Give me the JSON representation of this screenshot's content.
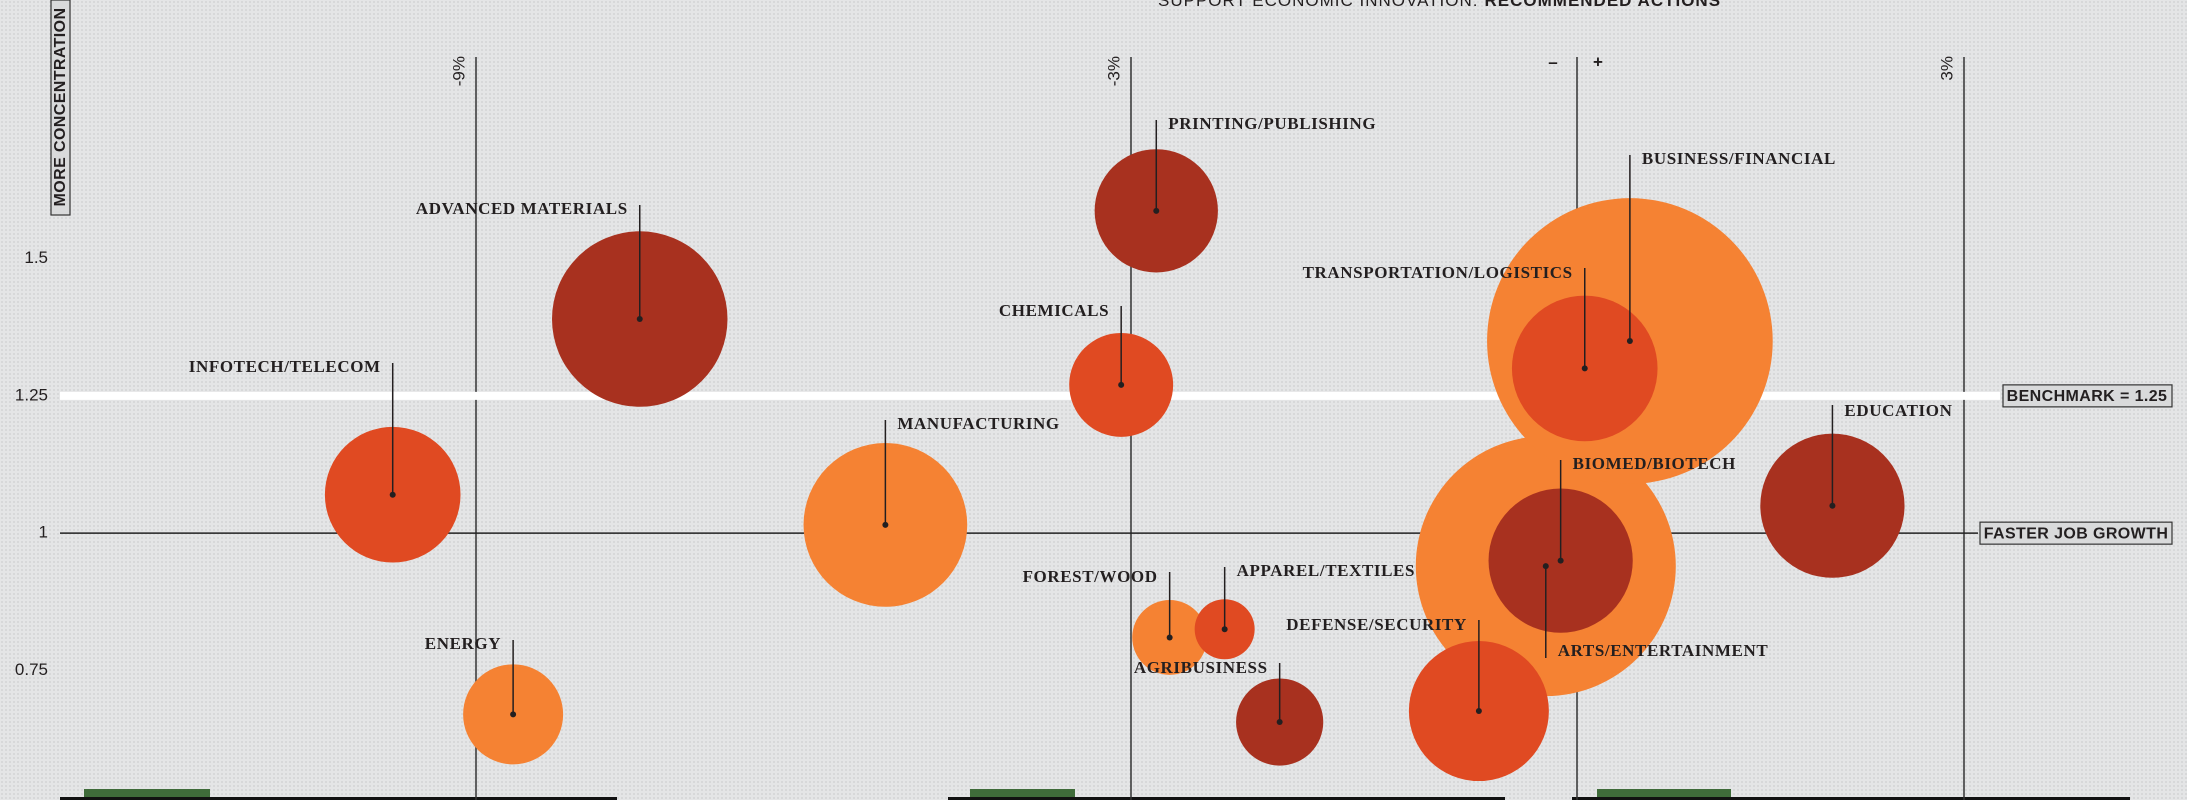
{
  "chart_data": {
    "type": "bubble",
    "title": "SUPPORT ECONOMIC INNOVATION:",
    "title_bold": "RECOMMENDED ACTIONS",
    "y_label": "MORE CONCENTRATION",
    "x_label": "FASTER JOB GROWTH",
    "x_axis_at": 1,
    "benchmark": {
      "value": 1.25,
      "label": "BENCHMARK = 1.25"
    },
    "zero_line": {
      "value": 0,
      "minus_label": "–",
      "plus_label": "+"
    },
    "xlim": [
      -13.4,
      4.7
    ],
    "xticks": [
      {
        "value": -9,
        "label": "-9%"
      },
      {
        "value": -3,
        "label": "-3%"
      },
      {
        "value": 3,
        "label": "3%"
      }
    ],
    "ylim": [
      0.514,
      1.971
    ],
    "yticks": [
      1.5,
      1.25,
      1,
      0.75
    ],
    "categories": [
      "ADVANCED MATERIALS",
      "INFOTECH/TELECOM",
      "ENERGY",
      "MANUFACTURING",
      "PRINTING/PUBLISHING",
      "CHEMICALS",
      "FOREST/WOOD",
      "APPAREL/TEXTILES",
      "AGRIBUSINESS",
      "ARTS/ENTERTAINMENT",
      "BIOMED/BIOTECH",
      "DEFENSE/SECURITY",
      "BUSINESS/FINANCIAL",
      "TRANSPORTATION/LOGISTICS",
      "EDUCATION"
    ],
    "x": [
      -7.5,
      -9.77,
      -8.66,
      -5.25,
      -2.83,
      -3.09,
      -2.74,
      -2.37,
      -2.0,
      -0.21,
      -0.11,
      -0.66,
      0.41,
      0.06,
      1.98
    ],
    "values": [
      1.39,
      1.07,
      0.67,
      1.015,
      1.587,
      1.27,
      0.81,
      0.825,
      0.656,
      0.94,
      0.95,
      0.676,
      1.35,
      1.3,
      1.05
    ],
    "sizes": [
      77,
      46,
      25,
      67,
      38,
      27,
      14,
      9,
      19,
      169,
      52,
      49,
      204,
      53,
      52
    ],
    "colors": [
      "#a8311f",
      "#e04a22",
      "#f58233",
      "#f58233",
      "#a8311f",
      "#e04a22",
      "#f58233",
      "#e04a22",
      "#a8311f",
      "#f58233",
      "#a8311f",
      "#e04a22",
      "#f58233",
      "#e04a22",
      "#a8311f"
    ]
  }
}
